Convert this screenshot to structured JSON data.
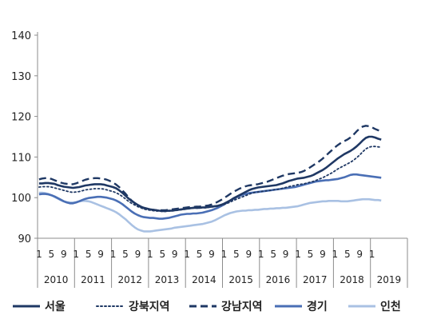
{
  "chart_data": {
    "type": "line",
    "title": "",
    "xlabel": "",
    "ylabel": "",
    "ylim": [
      90,
      140
    ],
    "yticks": [
      90,
      100,
      110,
      120,
      130,
      140
    ],
    "month_tick_labels": [
      "1",
      "5",
      "9"
    ],
    "years": [
      "2010",
      "2011",
      "2012",
      "2013",
      "2014",
      "2015",
      "2016",
      "2017",
      "2018",
      "2019"
    ],
    "x_start": "2010-01",
    "grid": false,
    "legend_position": "bottom",
    "series": [
      {
        "name": "서울",
        "color": "#1f3864",
        "style": "solid",
        "values": [
          103.5,
          103.5,
          103.6,
          103.6,
          103.5,
          103.4,
          103.1,
          102.9,
          102.7,
          102.6,
          102.5,
          102.4,
          102.5,
          102.6,
          102.8,
          103.0,
          103.1,
          103.2,
          103.3,
          103.3,
          103.3,
          103.2,
          103.0,
          102.8,
          102.6,
          102.3,
          101.8,
          101.2,
          100.5,
          99.8,
          99.2,
          98.7,
          98.2,
          97.8,
          97.5,
          97.3,
          97.1,
          97.0,
          96.9,
          96.8,
          96.7,
          96.7,
          96.8,
          96.8,
          96.9,
          97.0,
          97.1,
          97.2,
          97.3,
          97.4,
          97.5,
          97.5,
          97.5,
          97.6,
          97.6,
          97.7,
          97.8,
          97.9,
          98.0,
          98.2,
          98.5,
          98.9,
          99.3,
          99.8,
          100.2,
          100.6,
          101.0,
          101.4,
          101.8,
          102.1,
          102.3,
          102.5,
          102.6,
          102.7,
          102.8,
          102.9,
          103.0,
          103.1,
          103.3,
          103.5,
          103.8,
          104.1,
          104.3,
          104.5,
          104.7,
          104.8,
          104.9,
          105.1,
          105.3,
          105.6,
          106.0,
          106.4,
          106.8,
          107.3,
          107.9,
          108.5,
          109.1,
          109.7,
          110.2,
          110.7,
          111.1,
          111.5,
          112.0,
          112.6,
          113.3,
          114.1,
          114.7,
          115.0,
          115.0,
          114.8,
          114.5,
          114.3
        ]
      },
      {
        "name": "강북지역",
        "color": "#1f3864",
        "style": "dotted",
        "values": [
          102.6,
          102.7,
          102.7,
          102.7,
          102.6,
          102.4,
          102.2,
          102.0,
          101.8,
          101.6,
          101.4,
          101.3,
          101.4,
          101.5,
          101.7,
          101.9,
          102.0,
          102.1,
          102.2,
          102.2,
          102.2,
          102.1,
          101.9,
          101.7,
          101.5,
          101.2,
          100.8,
          100.3,
          99.7,
          99.1,
          98.6,
          98.2,
          97.8,
          97.5,
          97.2,
          97.0,
          96.9,
          96.8,
          96.7,
          96.7,
          96.6,
          96.6,
          96.7,
          96.7,
          96.8,
          96.9,
          97.0,
          97.1,
          97.2,
          97.3,
          97.4,
          97.4,
          97.4,
          97.5,
          97.5,
          97.6,
          97.7,
          97.8,
          97.9,
          98.1,
          98.3,
          98.6,
          98.9,
          99.3,
          99.6,
          99.9,
          100.2,
          100.5,
          100.8,
          101.1,
          101.3,
          101.4,
          101.5,
          101.6,
          101.7,
          101.8,
          101.9,
          102.0,
          102.1,
          102.3,
          102.5,
          102.7,
          102.9,
          103.0,
          103.2,
          103.3,
          103.4,
          103.6,
          103.8,
          104.0,
          104.3,
          104.6,
          104.9,
          105.3,
          105.7,
          106.1,
          106.6,
          107.1,
          107.5,
          107.9,
          108.3,
          108.7,
          109.2,
          109.8,
          110.5,
          111.3,
          112.0,
          112.4,
          112.6,
          112.6,
          112.5,
          112.4
        ]
      },
      {
        "name": "강남지역",
        "color": "#1f3864",
        "style": "dashed",
        "values": [
          104.5,
          104.7,
          104.8,
          104.8,
          104.6,
          104.3,
          104.0,
          103.7,
          103.5,
          103.4,
          103.3,
          103.3,
          103.5,
          103.8,
          104.1,
          104.4,
          104.6,
          104.7,
          104.8,
          104.8,
          104.7,
          104.6,
          104.4,
          104.1,
          103.7,
          103.2,
          102.6,
          101.8,
          101.0,
          100.1,
          99.3,
          98.7,
          98.1,
          97.7,
          97.4,
          97.2,
          97.1,
          97.0,
          96.9,
          96.9,
          96.9,
          96.9,
          97.0,
          97.1,
          97.2,
          97.3,
          97.4,
          97.5,
          97.6,
          97.7,
          97.7,
          97.8,
          97.8,
          97.9,
          98.0,
          98.1,
          98.3,
          98.6,
          99.0,
          99.4,
          99.9,
          100.4,
          100.9,
          101.4,
          101.8,
          102.2,
          102.5,
          102.8,
          103.0,
          103.1,
          103.2,
          103.3,
          103.5,
          103.7,
          103.9,
          104.2,
          104.5,
          104.8,
          105.1,
          105.4,
          105.6,
          105.8,
          105.9,
          106.0,
          106.1,
          106.3,
          106.6,
          107.0,
          107.5,
          108.0,
          108.5,
          109.0,
          109.6,
          110.3,
          111.0,
          111.7,
          112.4,
          113.0,
          113.5,
          113.9,
          114.3,
          114.8,
          115.5,
          116.3,
          117.0,
          117.5,
          117.7,
          117.6,
          117.3,
          116.9,
          116.6,
          116.3
        ]
      },
      {
        "name": "경기",
        "color": "#4a6fb5",
        "style": "solid",
        "values": [
          100.8,
          100.9,
          100.9,
          100.8,
          100.6,
          100.3,
          99.9,
          99.5,
          99.1,
          98.8,
          98.6,
          98.6,
          98.8,
          99.1,
          99.4,
          99.7,
          99.9,
          100.0,
          100.1,
          100.2,
          100.2,
          100.1,
          100.0,
          99.8,
          99.6,
          99.3,
          98.9,
          98.4,
          97.8,
          97.2,
          96.6,
          96.1,
          95.7,
          95.4,
          95.2,
          95.1,
          95.0,
          95.0,
          94.9,
          94.8,
          94.8,
          94.9,
          95.0,
          95.2,
          95.4,
          95.6,
          95.8,
          95.9,
          96.0,
          96.0,
          96.1,
          96.1,
          96.2,
          96.3,
          96.5,
          96.7,
          96.9,
          97.2,
          97.5,
          97.9,
          98.3,
          98.8,
          99.3,
          99.7,
          100.1,
          100.4,
          100.7,
          100.9,
          101.1,
          101.2,
          101.3,
          101.4,
          101.5,
          101.6,
          101.7,
          101.8,
          101.9,
          102.0,
          102.1,
          102.2,
          102.3,
          102.4,
          102.5,
          102.6,
          102.8,
          103.0,
          103.2,
          103.4,
          103.6,
          103.8,
          104.0,
          104.1,
          104.2,
          104.3,
          104.3,
          104.4,
          104.5,
          104.6,
          104.8,
          105.0,
          105.3,
          105.6,
          105.7,
          105.7,
          105.6,
          105.5,
          105.4,
          105.3,
          105.2,
          105.1,
          105.0,
          104.9
        ]
      },
      {
        "name": "인천",
        "color": "#a9c1e3",
        "style": "solid",
        "values": [
          101.2,
          101.2,
          101.1,
          100.9,
          100.6,
          100.2,
          99.8,
          99.4,
          99.1,
          98.9,
          98.8,
          98.8,
          98.9,
          99.1,
          99.2,
          99.2,
          99.1,
          98.9,
          98.6,
          98.3,
          98.0,
          97.7,
          97.4,
          97.1,
          96.8,
          96.4,
          95.9,
          95.3,
          94.7,
          94.0,
          93.3,
          92.7,
          92.2,
          91.9,
          91.7,
          91.7,
          91.7,
          91.8,
          91.9,
          92.0,
          92.1,
          92.2,
          92.3,
          92.4,
          92.6,
          92.7,
          92.8,
          92.9,
          93.0,
          93.1,
          93.2,
          93.3,
          93.4,
          93.5,
          93.7,
          93.9,
          94.1,
          94.4,
          94.8,
          95.2,
          95.6,
          95.9,
          96.2,
          96.4,
          96.6,
          96.7,
          96.8,
          96.8,
          96.9,
          96.9,
          97.0,
          97.0,
          97.1,
          97.2,
          97.2,
          97.3,
          97.3,
          97.4,
          97.4,
          97.5,
          97.5,
          97.6,
          97.7,
          97.8,
          97.9,
          98.1,
          98.3,
          98.5,
          98.7,
          98.8,
          98.9,
          99.0,
          99.1,
          99.1,
          99.2,
          99.2,
          99.2,
          99.2,
          99.1,
          99.1,
          99.1,
          99.2,
          99.3,
          99.4,
          99.5,
          99.6,
          99.6,
          99.6,
          99.5,
          99.4,
          99.4,
          99.3
        ]
      }
    ]
  }
}
